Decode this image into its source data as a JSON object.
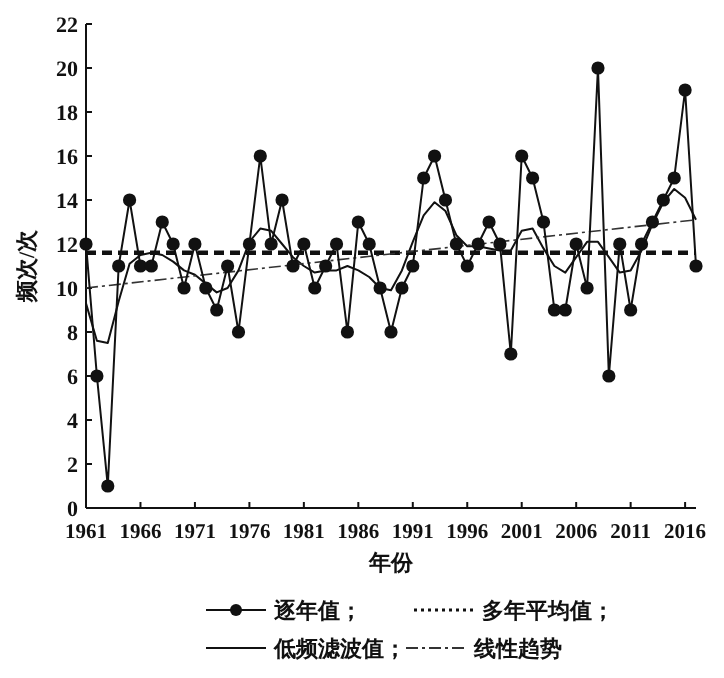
{
  "chart_data": {
    "type": "line",
    "xlabel": "年份",
    "ylabel": "频次/次",
    "xlim": [
      1961,
      2017
    ],
    "ylim": [
      0,
      22
    ],
    "xticks": [
      1961,
      1966,
      1971,
      1976,
      1981,
      1986,
      1991,
      1996,
      2001,
      2006,
      2011,
      2016
    ],
    "yticks": [
      0,
      2,
      4,
      6,
      8,
      10,
      12,
      14,
      16,
      18,
      20,
      22
    ],
    "grid": false,
    "legend": "bottom",
    "series": [
      {
        "name": "逐年值；",
        "color": "#111111",
        "marker": "circle",
        "line_style": "solid",
        "x": [
          1961,
          1962,
          1963,
          1964,
          1965,
          1966,
          1967,
          1968,
          1969,
          1970,
          1971,
          1972,
          1973,
          1974,
          1975,
          1976,
          1977,
          1978,
          1979,
          1980,
          1981,
          1982,
          1983,
          1984,
          1985,
          1986,
          1987,
          1988,
          1989,
          1990,
          1991,
          1992,
          1993,
          1994,
          1995,
          1996,
          1997,
          1998,
          1999,
          2000,
          2001,
          2002,
          2003,
          2004,
          2005,
          2006,
          2007,
          2008,
          2009,
          2010,
          2011,
          2012,
          2013,
          2014,
          2015,
          2016,
          2017
        ],
        "values": [
          12,
          6,
          1,
          11,
          14,
          11,
          11,
          13,
          12,
          10,
          12,
          10,
          9,
          11,
          8,
          12,
          16,
          12,
          14,
          11,
          12,
          10,
          11,
          12,
          8,
          13,
          12,
          10,
          8,
          10,
          11,
          15,
          16,
          14,
          12,
          11,
          12,
          13,
          12,
          7,
          16,
          15,
          13,
          9,
          9,
          12,
          10,
          20,
          6,
          12,
          9,
          12,
          13,
          14,
          15,
          19,
          11
        ]
      },
      {
        "name": "多年平均值；",
        "color": "#111111",
        "marker": "none",
        "line_style": "dashed",
        "x": [
          1961,
          2017
        ],
        "values": [
          11.6,
          11.6
        ]
      },
      {
        "name": "低频滤波值；",
        "color": "#111111",
        "marker": "none",
        "line_style": "solid",
        "x": [
          1961,
          1962,
          1963,
          1964,
          1965,
          1966,
          1967,
          1968,
          1969,
          1970,
          1971,
          1972,
          1973,
          1974,
          1975,
          1976,
          1977,
          1978,
          1979,
          1980,
          1981,
          1982,
          1983,
          1984,
          1985,
          1986,
          1987,
          1988,
          1989,
          1990,
          1991,
          1992,
          1993,
          1994,
          1995,
          1996,
          1997,
          1998,
          1999,
          2000,
          2001,
          2002,
          2003,
          2004,
          2005,
          2006,
          2007,
          2008,
          2009,
          2010,
          2011,
          2012,
          2013,
          2014,
          2015,
          2016,
          2017
        ],
        "values": [
          9.3,
          7.6,
          7.5,
          9.4,
          11.1,
          11.5,
          11.6,
          11.5,
          11.2,
          10.8,
          10.6,
          10.2,
          9.8,
          10.0,
          10.8,
          12.1,
          12.7,
          12.6,
          12.0,
          11.4,
          11.0,
          10.7,
          10.8,
          10.8,
          11.0,
          10.8,
          10.5,
          10.0,
          9.9,
          10.8,
          12.1,
          13.3,
          13.9,
          13.5,
          12.4,
          11.9,
          11.9,
          11.8,
          11.7,
          11.7,
          12.6,
          12.7,
          11.8,
          11.0,
          10.7,
          11.4,
          12.1,
          12.1,
          11.4,
          10.7,
          10.8,
          11.7,
          12.9,
          13.9,
          14.5,
          14.1,
          13.1
        ]
      },
      {
        "name": "线性趋势",
        "color": "#333333",
        "marker": "none",
        "line_style": "dashdot",
        "x": [
          1961,
          2017
        ],
        "values": [
          10.0,
          13.1
        ]
      }
    ]
  }
}
